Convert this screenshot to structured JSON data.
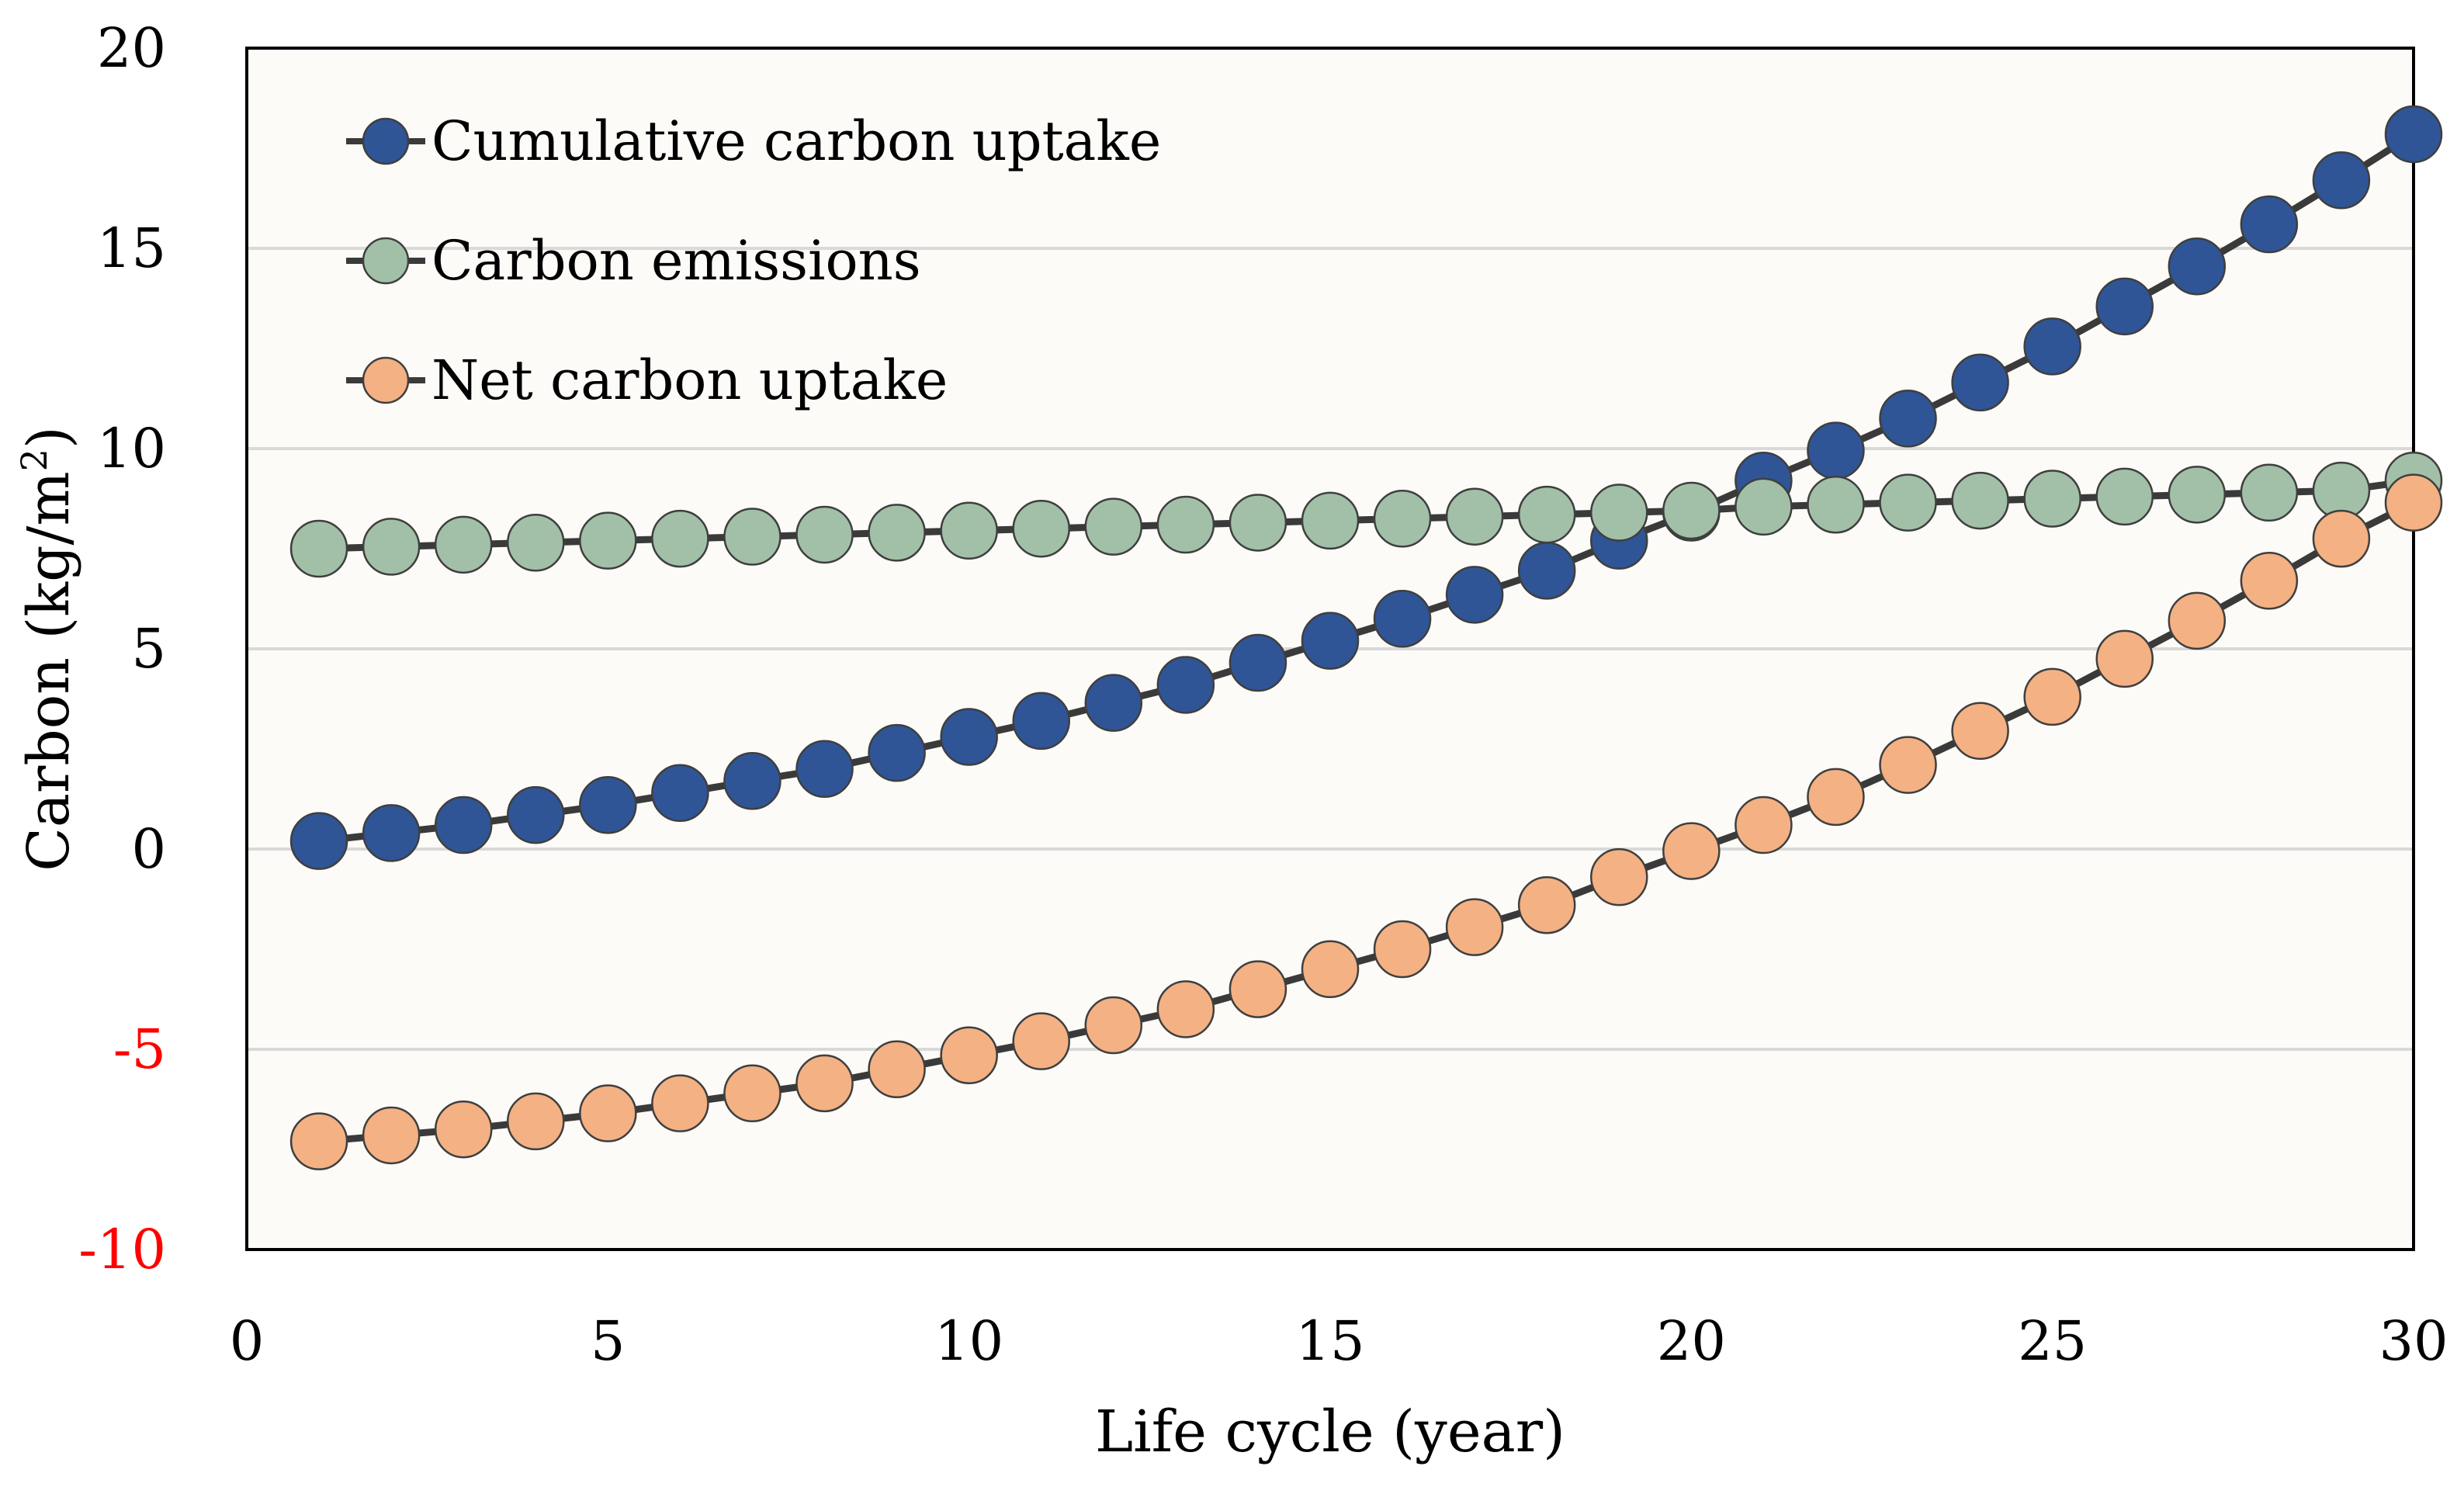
{
  "chart_data": {
    "type": "line",
    "xlabel": "Life cycle (year)",
    "ylabel": "Carbon (kg/m",
    "ylabel_sup": "2",
    "ylabel_close": ")",
    "xlim": [
      0,
      30
    ],
    "ylim": [
      -10,
      20
    ],
    "x_ticks": [
      0,
      5,
      10,
      15,
      20,
      25,
      30
    ],
    "y_ticks": [
      -10,
      -5,
      0,
      5,
      10,
      15,
      20
    ],
    "negative_tick_color": "#ff0000",
    "tick_color": "#000000",
    "plot_background": "#fcfbf7",
    "gridlines": "horizontal",
    "legend_position": "top-left",
    "x": [
      1,
      2,
      3,
      4,
      5,
      6,
      7,
      8,
      9,
      10,
      11,
      12,
      13,
      14,
      15,
      16,
      17,
      18,
      19,
      20,
      21,
      22,
      23,
      24,
      25,
      26,
      27,
      28,
      29,
      30
    ],
    "series": [
      {
        "name": "Cumulative carbon uptake",
        "color": "#2f5597",
        "values": [
          0.2,
          0.4,
          0.6,
          0.85,
          1.1,
          1.4,
          1.7,
          2.0,
          2.4,
          2.8,
          3.2,
          3.65,
          4.1,
          4.65,
          5.2,
          5.75,
          6.35,
          6.95,
          7.7,
          8.4,
          9.2,
          9.95,
          10.75,
          11.65,
          12.55,
          13.55,
          14.55,
          15.6,
          16.7,
          17.85
        ]
      },
      {
        "name": "Carbon emissions",
        "color": "#a2c0a8",
        "values": [
          7.5,
          7.55,
          7.6,
          7.65,
          7.7,
          7.75,
          7.8,
          7.85,
          7.9,
          7.95,
          8.0,
          8.05,
          8.1,
          8.15,
          8.2,
          8.25,
          8.3,
          8.35,
          8.4,
          8.45,
          8.55,
          8.6,
          8.65,
          8.7,
          8.75,
          8.8,
          8.85,
          8.9,
          8.95,
          9.2
        ]
      },
      {
        "name": "Net carbon uptake",
        "color": "#f4b183",
        "values": [
          -7.3,
          -7.15,
          -7.0,
          -6.8,
          -6.6,
          -6.35,
          -6.1,
          -5.85,
          -5.5,
          -5.15,
          -4.8,
          -4.4,
          -4.0,
          -3.5,
          -3.0,
          -2.5,
          -1.95,
          -1.4,
          -0.7,
          -0.05,
          0.6,
          1.3,
          2.1,
          2.95,
          3.8,
          4.75,
          5.7,
          6.7,
          7.75,
          8.65
        ]
      }
    ]
  }
}
